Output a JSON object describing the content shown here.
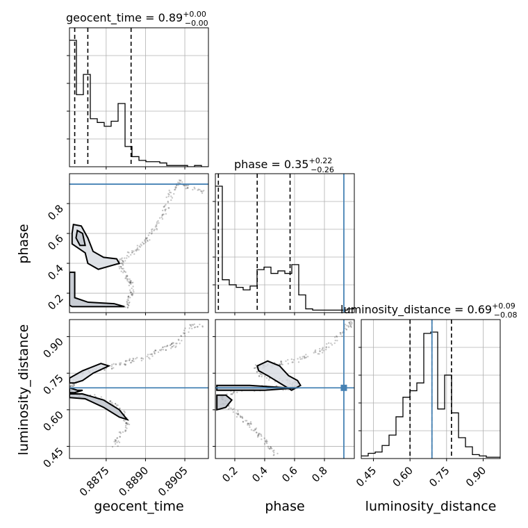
{
  "chart_data": {
    "type": "corner",
    "parameters": [
      "geocent_time",
      "phase",
      "luminosity_distance"
    ],
    "axis_labels": {
      "geocent_time": "geocent_time",
      "phase": "phase",
      "luminosity_distance": "luminosity_distance"
    },
    "ranges": {
      "geocent_time": [
        0.8861,
        0.8914
      ],
      "phase": [
        0.07,
        1.0
      ],
      "luminosity_distance": [
        0.4,
        0.97
      ]
    },
    "ticks": {
      "geocent_time": [
        "0.8875",
        "0.8890",
        "0.8905"
      ],
      "phase": [
        "0.2",
        "0.4",
        "0.6",
        "0.8"
      ],
      "luminosity_distance": [
        "0.45",
        "0.60",
        "0.75",
        "0.90"
      ]
    },
    "truths": {
      "phase": 0.93,
      "luminosity_distance": 0.69
    },
    "titles": {
      "geocent_time": {
        "name": "geocent_time",
        "value": "0.89",
        "plus": "+0.00",
        "minus": "−0.00"
      },
      "phase": {
        "name": "phase",
        "value": "0.35",
        "plus": "+0.22",
        "minus": "−0.26"
      },
      "luminosity_distance": {
        "name": "luminosity_distance",
        "value": "0.69",
        "plus": "+0.09",
        "minus": "−0.08"
      }
    },
    "quantiles": {
      "geocent_time": [
        0.8863,
        0.8868,
        0.88845
      ],
      "phase": [
        0.09,
        0.35,
        0.57
      ],
      "luminosity_distance": [
        0.6,
        0.69,
        0.77
      ]
    },
    "histograms": {
      "geocent_time": {
        "edges": [
          0.8861,
          0.886365,
          0.88663,
          0.886895,
          0.88716,
          0.887425,
          0.88769,
          0.887955,
          0.88822,
          0.888485,
          0.88875,
          0.889015,
          0.88928,
          0.889545,
          0.88981,
          0.890075,
          0.89034,
          0.890605,
          0.89087,
          0.891135,
          0.8914
        ],
        "counts": [
          1.0,
          0.57,
          0.73,
          0.38,
          0.35,
          0.32,
          0.36,
          0.5,
          0.16,
          0.08,
          0.05,
          0.04,
          0.04,
          0.03,
          0.01,
          0.01,
          0.01,
          0.0,
          0.01,
          0.0
        ]
      },
      "phase": {
        "edges": [
          0.07,
          0.1165,
          0.163,
          0.2095,
          0.256,
          0.3025,
          0.349,
          0.3955,
          0.442,
          0.4885,
          0.535,
          0.5815,
          0.628,
          0.6745,
          0.721,
          0.7675,
          0.814,
          0.8605,
          0.907,
          0.9535,
          1.0
        ],
        "counts": [
          1.0,
          0.26,
          0.22,
          0.2,
          0.18,
          0.21,
          0.34,
          0.36,
          0.31,
          0.33,
          0.31,
          0.38,
          0.14,
          0.03,
          0.02,
          0.02,
          0.02,
          0.02,
          0.02,
          0.03
        ]
      },
      "luminosity_distance": {
        "edges": [
          0.4,
          0.4285,
          0.457,
          0.4855,
          0.514,
          0.5425,
          0.571,
          0.5995,
          0.628,
          0.6565,
          0.685,
          0.7135,
          0.742,
          0.7705,
          0.799,
          0.8275,
          0.856,
          0.8845,
          0.913,
          0.9415,
          0.97
        ],
        "counts": [
          0.02,
          0.04,
          0.05,
          0.1,
          0.18,
          0.32,
          0.47,
          0.52,
          0.58,
          0.96,
          0.97,
          0.38,
          0.64,
          0.35,
          0.16,
          0.09,
          0.03,
          0.02,
          0.01,
          0.01
        ]
      }
    },
    "panels_2d": [
      {
        "x": "geocent_time",
        "y": "phase",
        "trace": [
          [
            0.8912,
            0.88
          ],
          [
            0.8906,
            0.91
          ],
          [
            0.8903,
            0.95
          ],
          [
            0.89,
            0.88
          ],
          [
            0.8898,
            0.78
          ],
          [
            0.8896,
            0.7
          ],
          [
            0.8893,
            0.62
          ],
          [
            0.889,
            0.55
          ],
          [
            0.8886,
            0.48
          ],
          [
            0.8882,
            0.44
          ],
          [
            0.888,
            0.4
          ],
          [
            0.8882,
            0.34
          ],
          [
            0.8884,
            0.28
          ],
          [
            0.8885,
            0.22
          ],
          [
            0.8884,
            0.16
          ],
          [
            0.8883,
            0.11
          ]
        ],
        "contours": [
          [
            [
              0.88625,
              0.66
            ],
            [
              0.88655,
              0.65
            ],
            [
              0.8868,
              0.57
            ],
            [
              0.887,
              0.48
            ],
            [
              0.8874,
              0.44
            ],
            [
              0.8879,
              0.43
            ],
            [
              0.888,
              0.4
            ],
            [
              0.8872,
              0.36
            ],
            [
              0.8868,
              0.4
            ],
            [
              0.8867,
              0.47
            ],
            [
              0.8862,
              0.53
            ],
            [
              0.8862,
              0.6
            ]
          ],
          [
            [
              0.8864,
              0.62
            ],
            [
              0.8866,
              0.6
            ],
            [
              0.8867,
              0.52
            ],
            [
              0.8865,
              0.52
            ],
            [
              0.88635,
              0.57
            ]
          ],
          [
            [
              0.8861,
              0.34
            ],
            [
              0.8863,
              0.34
            ],
            [
              0.8863,
              0.17
            ],
            [
              0.8868,
              0.14
            ],
            [
              0.8878,
              0.13
            ],
            [
              0.8882,
              0.11
            ],
            [
              0.8862,
              0.11
            ],
            [
              0.8861,
              0.12
            ]
          ]
        ]
      },
      {
        "x": "geocent_time",
        "y": "luminosity_distance",
        "trace": [
          [
            0.8912,
            0.95
          ],
          [
            0.8907,
            0.94
          ],
          [
            0.8902,
            0.87
          ],
          [
            0.8899,
            0.86
          ],
          [
            0.8895,
            0.84
          ],
          [
            0.889,
            0.81
          ],
          [
            0.8884,
            0.8
          ],
          [
            0.8878,
            0.78
          ],
          [
            0.8873,
            0.77
          ],
          [
            0.8868,
            0.76
          ],
          [
            0.8864,
            0.74
          ],
          [
            0.8862,
            0.7
          ],
          [
            0.8862,
            0.68
          ],
          [
            0.8865,
            0.66
          ],
          [
            0.8872,
            0.65
          ],
          [
            0.8878,
            0.62
          ],
          [
            0.8882,
            0.58
          ],
          [
            0.8883,
            0.54
          ],
          [
            0.888,
            0.49
          ],
          [
            0.8878,
            0.44
          ]
        ],
        "contours": [
          [
            [
              0.8861,
              0.73
            ],
            [
              0.8866,
              0.76
            ],
            [
              0.8873,
              0.79
            ],
            [
              0.8876,
              0.78
            ],
            [
              0.887,
              0.75
            ],
            [
              0.8866,
              0.72
            ],
            [
              0.8863,
              0.71
            ],
            [
              0.8861,
              0.71
            ]
          ],
          [
            [
              0.8861,
              0.69
            ],
            [
              0.8864,
              0.68
            ],
            [
              0.8866,
              0.68
            ],
            [
              0.8863,
              0.67
            ],
            [
              0.8861,
              0.67
            ]
          ],
          [
            [
              0.8861,
              0.665
            ],
            [
              0.8866,
              0.665
            ],
            [
              0.8874,
              0.64
            ],
            [
              0.888,
              0.6
            ],
            [
              0.8883,
              0.56
            ],
            [
              0.888,
              0.57
            ],
            [
              0.8874,
              0.61
            ],
            [
              0.8867,
              0.645
            ],
            [
              0.8861,
              0.65
            ]
          ]
        ]
      },
      {
        "x": "phase",
        "y": "luminosity_distance",
        "trace": [
          [
            0.99,
            0.96
          ],
          [
            0.95,
            0.94
          ],
          [
            0.9,
            0.9
          ],
          [
            0.8,
            0.85
          ],
          [
            0.7,
            0.82
          ],
          [
            0.6,
            0.8
          ],
          [
            0.5,
            0.79
          ],
          [
            0.4,
            0.78
          ],
          [
            0.34,
            0.78
          ],
          [
            0.38,
            0.74
          ],
          [
            0.5,
            0.72
          ],
          [
            0.6,
            0.71
          ],
          [
            0.62,
            0.7
          ],
          [
            0.55,
            0.69
          ],
          [
            0.4,
            0.69
          ],
          [
            0.25,
            0.68
          ],
          [
            0.12,
            0.66
          ],
          [
            0.12,
            0.63
          ],
          [
            0.18,
            0.6
          ],
          [
            0.24,
            0.57
          ],
          [
            0.3,
            0.54
          ],
          [
            0.36,
            0.5
          ],
          [
            0.42,
            0.46
          ],
          [
            0.48,
            0.41
          ]
        ],
        "contours": [
          [
            [
              0.35,
              0.78
            ],
            [
              0.42,
              0.8
            ],
            [
              0.5,
              0.78
            ],
            [
              0.56,
              0.74
            ],
            [
              0.62,
              0.72
            ],
            [
              0.64,
              0.7
            ],
            [
              0.58,
              0.68
            ],
            [
              0.5,
              0.71
            ],
            [
              0.42,
              0.74
            ],
            [
              0.36,
              0.76
            ]
          ],
          [
            [
              0.08,
              0.7
            ],
            [
              0.3,
              0.7
            ],
            [
              0.55,
              0.69
            ],
            [
              0.62,
              0.69
            ],
            [
              0.4,
              0.68
            ],
            [
              0.2,
              0.68
            ],
            [
              0.08,
              0.68
            ]
          ],
          [
            [
              0.08,
              0.66
            ],
            [
              0.14,
              0.66
            ],
            [
              0.18,
              0.64
            ],
            [
              0.14,
              0.61
            ],
            [
              0.08,
              0.6
            ]
          ]
        ]
      }
    ],
    "line_color": "#000000",
    "truth_color": "#4682b4",
    "grid": true
  }
}
